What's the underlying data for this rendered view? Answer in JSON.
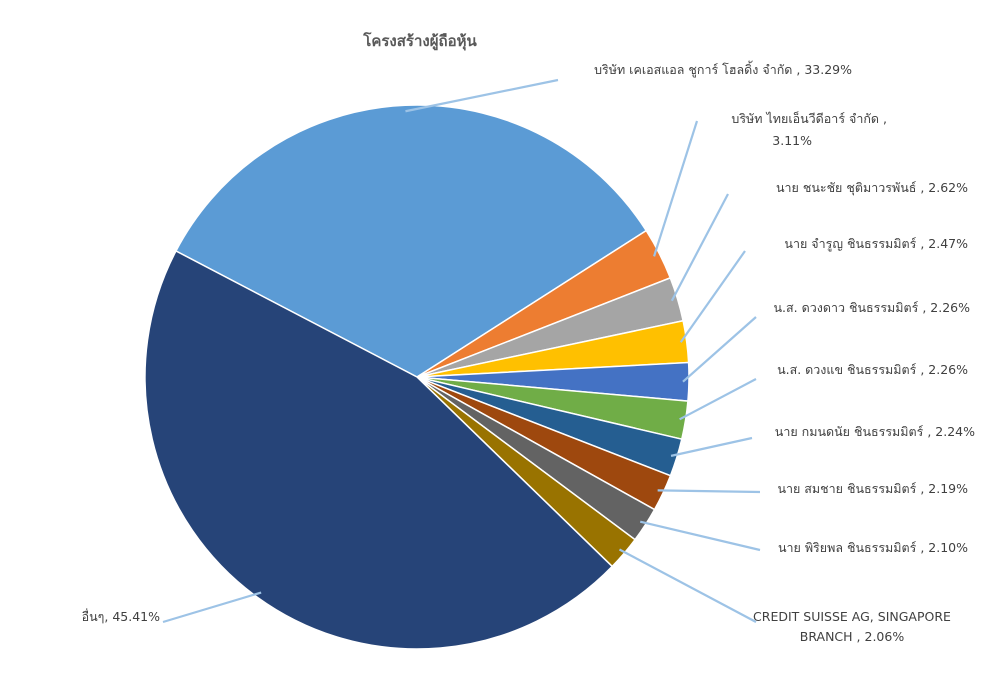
{
  "chart_data": {
    "type": "pie",
    "title": "โครงสร้างผู้ถือหุ้น",
    "slices": [
      {
        "label_lines": [
          "บริษัท เคเอสแอล ชูการ์ โฮลดิ้ง จำกัด , 33.29%"
        ],
        "name": "บริษัท เคเอสแอล ชูการ์ โฮลดิ้ง จำกัด",
        "value": 33.29,
        "color": "#5B9BD5"
      },
      {
        "label_lines": [
          "บริษัท ไทยเอ็นวีดีอาร์ จำกัด ,",
          "3.11%"
        ],
        "name": "บริษัท ไทยเอ็นวีดีอาร์ จำกัด",
        "value": 3.11,
        "color": "#ED7D31"
      },
      {
        "label_lines": [
          "นาย ชนะชัย ชุติมาวรพันธ์ , 2.62%"
        ],
        "name": "นาย ชนะชัย ชุติมาวรพันธ์",
        "value": 2.62,
        "color": "#A5A5A5"
      },
      {
        "label_lines": [
          "นาย จำรูญ ชินธรรมมิตร์ , 2.47%"
        ],
        "name": "นาย จำรูญ ชินธรรมมิตร์",
        "value": 2.47,
        "color": "#FFC000"
      },
      {
        "label_lines": [
          "น.ส. ดวงดาว ชินธรรมมิตร์ , 2.26%"
        ],
        "name": "น.ส. ดวงดาว ชินธรรมมิตร์",
        "value": 2.26,
        "color": "#4472C4"
      },
      {
        "label_lines": [
          "น.ส. ดวงแข ชินธรรมมิตร์ , 2.26%"
        ],
        "name": "น.ส. ดวงแข ชินธรรมมิตร์",
        "value": 2.26,
        "color": "#70AD47"
      },
      {
        "label_lines": [
          "นาย กมนดนัย ชินธรรมมิตร์ , 2.24%"
        ],
        "name": "นาย กมนดนัย ชินธรรมมิตร์",
        "value": 2.24,
        "color": "#255E91"
      },
      {
        "label_lines": [
          "นาย สมชาย ชินธรรมมิตร์ , 2.19%"
        ],
        "name": "นาย สมชาย ชินธรรมมิตร์",
        "value": 2.19,
        "color": "#9E480E"
      },
      {
        "label_lines": [
          "นาย พิริยพล ชินธรรมมิตร์ , 2.10%"
        ],
        "name": "นาย พิริยพล ชินธรรมมิตร์",
        "value": 2.1,
        "color": "#636363"
      },
      {
        "label_lines": [
          "CREDIT SUISSE AG, SINGAPORE",
          "BRANCH , 2.06%"
        ],
        "name": "CREDIT SUISSE AG, SINGAPORE BRANCH",
        "value": 2.06,
        "color": "#997300"
      },
      {
        "label_lines": [
          "อื่นๆ, 45.41%"
        ],
        "name": "อื่นๆ",
        "value": 45.41,
        "color": "#264478"
      }
    ],
    "legend": "none"
  }
}
